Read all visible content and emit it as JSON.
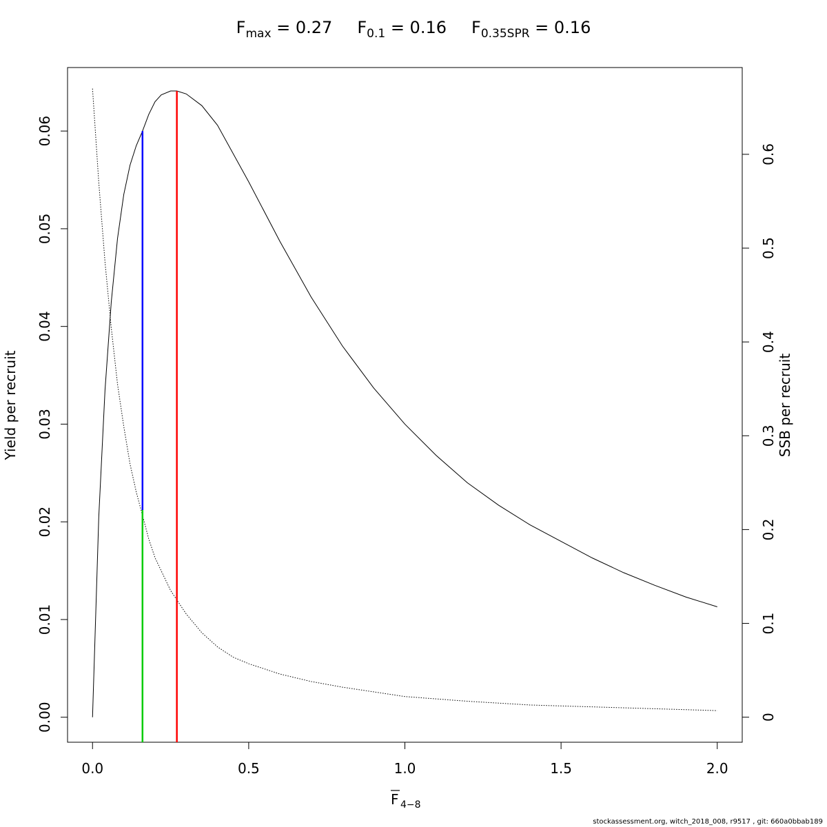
{
  "title": {
    "fmax": {
      "sym": "F",
      "sub": "max",
      "eq": " = 0.27"
    },
    "f01": {
      "sym": "F",
      "sub": "0.1",
      "eq": " = 0.16"
    },
    "f035": {
      "sym": "F",
      "sub": "0.35SPR",
      "eq": " = 0.16"
    }
  },
  "footer": "stockassessment.org, witch_2018_008, r9517 , git: 660a0bbab189",
  "chart_data": {
    "type": "line",
    "xlabel": {
      "sym": "F",
      "sub": "4−8"
    },
    "ylabel": "Yield per recruit",
    "y2label": "SSB per recruit",
    "xlim": [
      -0.08,
      2.08
    ],
    "ylim": [
      -0.00256,
      0.0665
    ],
    "y2lim": [
      -0.0267,
      0.6925
    ],
    "xticks": [
      0.0,
      0.5,
      1.0,
      1.5,
      2.0
    ],
    "xticklabels": [
      "0.0",
      "0.5",
      "1.0",
      "1.5",
      "2.0"
    ],
    "yticks": [
      0.0,
      0.01,
      0.02,
      0.03,
      0.04,
      0.05,
      0.06
    ],
    "yticklabels": [
      "0.00",
      "0.01",
      "0.02",
      "0.03",
      "0.04",
      "0.05",
      "0.06"
    ],
    "y2ticks": [
      0.0,
      0.1,
      0.2,
      0.3,
      0.4,
      0.5,
      0.6
    ],
    "y2ticklabels": [
      "0",
      "0.1",
      "0.2",
      "0.3",
      "0.4",
      "0.5",
      "0.6"
    ],
    "series": [
      {
        "style": "solid",
        "axis": "left",
        "color": "#000000",
        "x": [
          0.0,
          0.02,
          0.04,
          0.06,
          0.08,
          0.1,
          0.12,
          0.14,
          0.16,
          0.18,
          0.2,
          0.22,
          0.25,
          0.27,
          0.3,
          0.35,
          0.4,
          0.5,
          0.6,
          0.7,
          0.8,
          0.9,
          1.0,
          1.1,
          1.2,
          1.3,
          1.4,
          1.5,
          1.6,
          1.7,
          1.8,
          1.9,
          2.0
        ],
        "y": [
          0.0,
          0.0205,
          0.0335,
          0.0425,
          0.049,
          0.0535,
          0.0565,
          0.0585,
          0.06,
          0.0617,
          0.063,
          0.0637,
          0.0641,
          0.0641,
          0.0638,
          0.0626,
          0.0606,
          0.0548,
          0.0487,
          0.043,
          0.038,
          0.0337,
          0.03,
          0.0268,
          0.024,
          0.0217,
          0.0197,
          0.018,
          0.0163,
          0.0148,
          0.0135,
          0.0123,
          0.0113
        ]
      },
      {
        "style": "dotted",
        "axis": "right",
        "color": "#000000",
        "x": [
          0.0,
          0.02,
          0.04,
          0.06,
          0.08,
          0.1,
          0.12,
          0.14,
          0.16,
          0.18,
          0.2,
          0.25,
          0.3,
          0.35,
          0.4,
          0.45,
          0.5,
          0.6,
          0.7,
          0.8,
          0.9,
          1.0,
          1.2,
          1.4,
          1.6,
          1.8,
          2.0
        ],
        "y": [
          0.67,
          0.57,
          0.485,
          0.415,
          0.355,
          0.31,
          0.27,
          0.24,
          0.215,
          0.19,
          0.17,
          0.135,
          0.11,
          0.09,
          0.075,
          0.064,
          0.057,
          0.046,
          0.038,
          0.032,
          0.027,
          0.022,
          0.017,
          0.013,
          0.011,
          0.009,
          0.007
        ]
      }
    ],
    "reference_lines": [
      {
        "name": "F0.1",
        "color": "#0000ff",
        "x": 0.16,
        "y_from": 0.0212,
        "y_to": 0.06
      },
      {
        "name": "F0.35SPR",
        "color": "#00cc00",
        "x": 0.16,
        "y_from": -0.00256,
        "y_to": 0.0212
      },
      {
        "name": "Fmax",
        "color": "#ff0000",
        "x": 0.27,
        "y_from": -0.00256,
        "y_to": 0.0641
      }
    ]
  }
}
